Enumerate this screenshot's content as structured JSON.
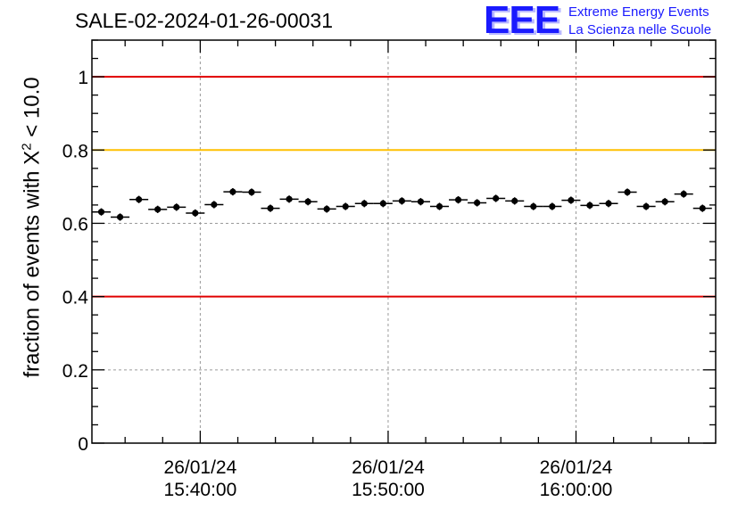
{
  "title": "SALE-02-2024-01-26-00031",
  "logo": {
    "letters": "EEE",
    "line1": "Extreme Energy Events",
    "line2": "La Scienza nelle Scuole"
  },
  "chart_data": {
    "type": "scatter",
    "title": "SALE-02-2024-01-26-00031",
    "xlabel": "",
    "ylabel": "fraction of events with χ² < 10.0",
    "ylabel_parts": {
      "prefix": "fraction of events with X",
      "sup": "2",
      "suffix": " < 10.0"
    },
    "ylim": [
      0,
      1.1
    ],
    "xlim": [
      "15:34:14",
      "16:07:26"
    ],
    "grid": true,
    "x_ticks": [
      {
        "date": "26/01/24",
        "time": "15:40:00"
      },
      {
        "date": "26/01/24",
        "time": "15:50:00"
      },
      {
        "date": "26/01/24",
        "time": "16:00:00"
      }
    ],
    "y_ticks": [
      "0",
      "0.2",
      "0.4",
      "0.6",
      "0.8",
      "1"
    ],
    "reference_lines": [
      {
        "y": 1.0,
        "color": "#e00000"
      },
      {
        "y": 0.8,
        "color": "#ffc000"
      },
      {
        "y": 0.4,
        "color": "#e00000"
      }
    ],
    "series": [
      {
        "color": "#000000",
        "x_error": "00:00:30",
        "points": [
          {
            "x": "15:34:44",
            "y": 0.631,
            "err": 0.01
          },
          {
            "x": "15:35:44",
            "y": 0.617,
            "err": 0.01
          },
          {
            "x": "15:36:44",
            "y": 0.665,
            "err": 0.01
          },
          {
            "x": "15:37:44",
            "y": 0.638,
            "err": 0.01
          },
          {
            "x": "15:38:44",
            "y": 0.644,
            "err": 0.01
          },
          {
            "x": "15:39:44",
            "y": 0.628,
            "err": 0.01
          },
          {
            "x": "15:40:44",
            "y": 0.651,
            "err": 0.01
          },
          {
            "x": "15:41:44",
            "y": 0.686,
            "err": 0.01
          },
          {
            "x": "15:42:44",
            "y": 0.685,
            "err": 0.01
          },
          {
            "x": "15:43:44",
            "y": 0.641,
            "err": 0.01
          },
          {
            "x": "15:44:44",
            "y": 0.666,
            "err": 0.01
          },
          {
            "x": "15:45:44",
            "y": 0.659,
            "err": 0.01
          },
          {
            "x": "15:46:44",
            "y": 0.639,
            "err": 0.01
          },
          {
            "x": "15:47:44",
            "y": 0.646,
            "err": 0.01
          },
          {
            "x": "15:48:44",
            "y": 0.654,
            "err": 0.01
          },
          {
            "x": "15:49:44",
            "y": 0.654,
            "err": 0.01
          },
          {
            "x": "15:50:44",
            "y": 0.661,
            "err": 0.01
          },
          {
            "x": "15:51:44",
            "y": 0.659,
            "err": 0.01
          },
          {
            "x": "15:52:44",
            "y": 0.646,
            "err": 0.01
          },
          {
            "x": "15:53:44",
            "y": 0.664,
            "err": 0.01
          },
          {
            "x": "15:54:44",
            "y": 0.656,
            "err": 0.01
          },
          {
            "x": "15:55:44",
            "y": 0.668,
            "err": 0.01
          },
          {
            "x": "15:56:44",
            "y": 0.661,
            "err": 0.01
          },
          {
            "x": "15:57:44",
            "y": 0.646,
            "err": 0.01
          },
          {
            "x": "15:58:44",
            "y": 0.646,
            "err": 0.01
          },
          {
            "x": "15:59:44",
            "y": 0.663,
            "err": 0.01
          },
          {
            "x": "16:00:44",
            "y": 0.649,
            "err": 0.01
          },
          {
            "x": "16:01:44",
            "y": 0.654,
            "err": 0.01
          },
          {
            "x": "16:02:44",
            "y": 0.685,
            "err": 0.01
          },
          {
            "x": "16:03:44",
            "y": 0.646,
            "err": 0.01
          },
          {
            "x": "16:04:44",
            "y": 0.659,
            "err": 0.01
          },
          {
            "x": "16:05:44",
            "y": 0.68,
            "err": 0.01
          },
          {
            "x": "16:06:44",
            "y": 0.641,
            "err": 0.01
          }
        ]
      }
    ]
  }
}
